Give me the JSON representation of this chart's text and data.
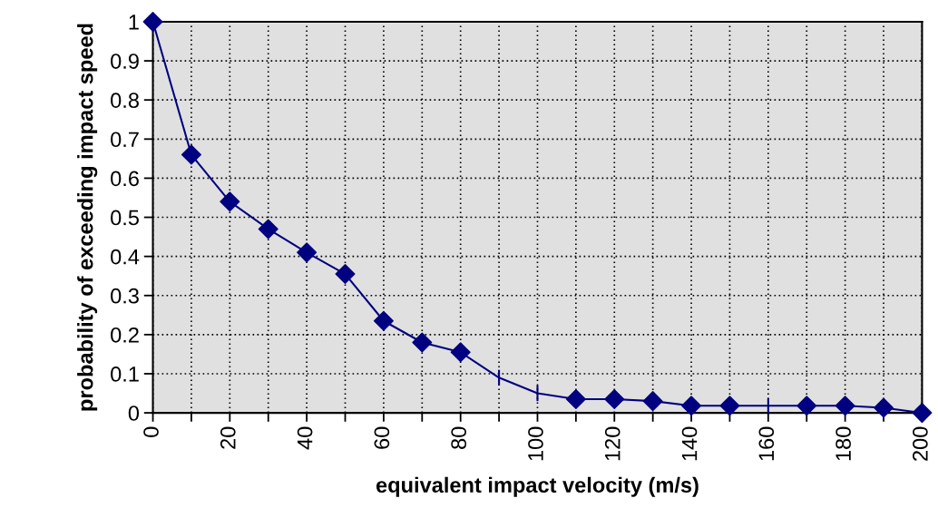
{
  "chart_data": {
    "type": "line",
    "xlabel": "equivalent impact velocity (m/s)",
    "ylabel": "probability of exceeding impact speed",
    "x": [
      0,
      10,
      20,
      30,
      40,
      50,
      60,
      70,
      80,
      90,
      100,
      110,
      120,
      130,
      140,
      150,
      160,
      170,
      180,
      190,
      200
    ],
    "series": [
      {
        "color": "#000080",
        "marker": "none",
        "values": [
          1.0,
          0.66,
          0.54,
          0.47,
          0.41,
          0.355,
          0.235,
          0.18,
          0.155,
          0.09,
          0.05,
          0.035,
          0.035,
          0.03,
          0.018,
          0.018,
          0.018,
          0.018,
          0.018,
          0.013,
          0.0
        ],
        "errors": [
          null,
          null,
          null,
          null,
          null,
          null,
          null,
          null,
          null,
          0.02,
          0.02,
          null,
          null,
          null,
          null,
          null,
          0.02,
          null,
          null,
          null,
          null
        ]
      },
      {
        "type": "scatter",
        "color": "#000080",
        "marker": "diamond",
        "values": [
          1.0,
          0.66,
          0.54,
          0.47,
          0.41,
          0.355,
          0.235,
          0.18,
          0.155,
          null,
          null,
          0.035,
          0.035,
          0.03,
          0.018,
          0.018,
          null,
          0.018,
          0.018,
          0.013,
          0.0
        ]
      }
    ],
    "xlim": [
      0,
      200
    ],
    "ylim": [
      0,
      1
    ],
    "xticks": [
      0,
      {
        "value": 10,
        "label": null
      },
      20,
      {
        "value": 30,
        "label": null
      },
      40,
      {
        "value": 50,
        "label": null
      },
      60,
      {
        "value": 70,
        "label": null
      },
      80,
      {
        "value": 90,
        "label": null
      },
      100,
      {
        "value": 110,
        "label": null
      },
      120,
      {
        "value": 130,
        "label": null
      },
      140,
      {
        "value": 150,
        "label": null
      },
      160,
      {
        "value": 170,
        "label": null
      },
      180,
      {
        "value": 190,
        "label": null
      },
      200
    ],
    "yticks": [
      0,
      0.1,
      0.2,
      0.3,
      0.4,
      0.5,
      0.6,
      0.7,
      0.8,
      0.9,
      1
    ],
    "grid": true,
    "legend": false
  }
}
